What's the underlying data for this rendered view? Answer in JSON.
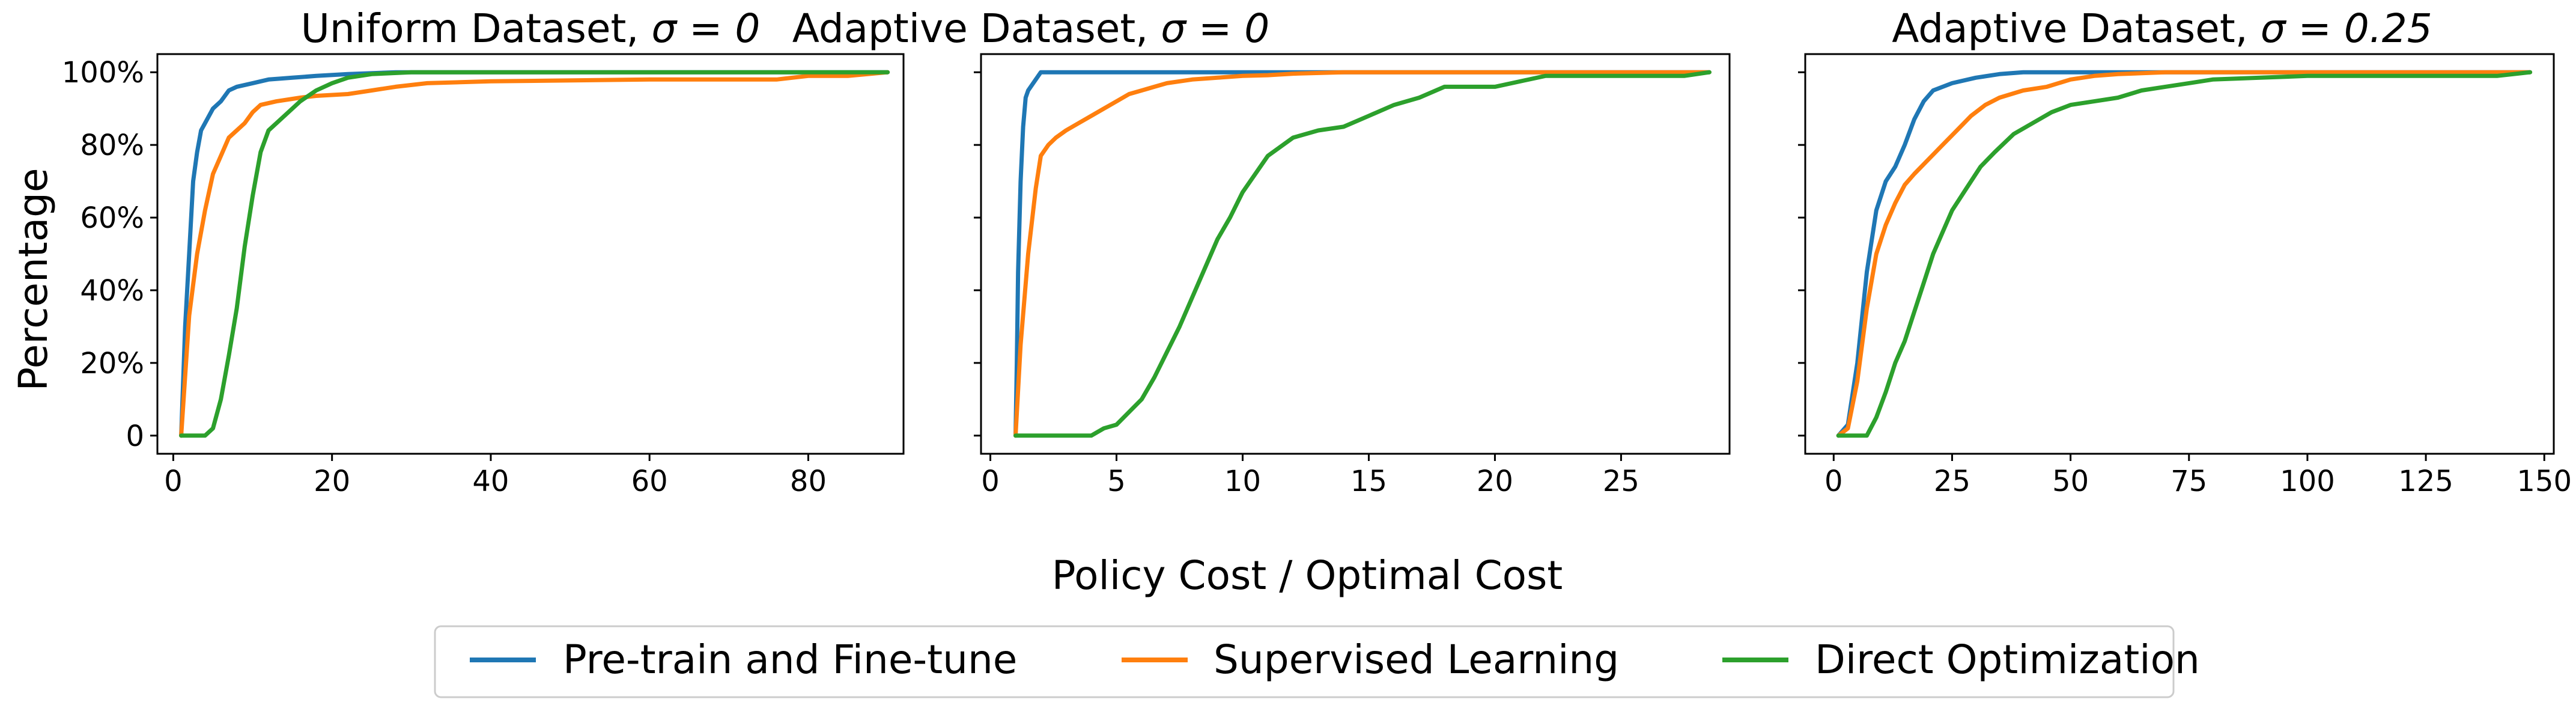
{
  "colors": {
    "pretrain": "#1f77b4",
    "supervised": "#ff7f0e",
    "direct": "#2ca02c"
  },
  "figure": {
    "ylabel": "Percentage",
    "xlabel": "Policy Cost / Optimal Cost",
    "legend": {
      "placement": "bottom-center",
      "entries": [
        "Pre-train and Fine-tune",
        "Supervised Learning",
        "Direct Optimization"
      ]
    }
  },
  "chart_data": [
    {
      "type": "line",
      "title_prefix": "Uniform Dataset, ",
      "title_math": "σ = 0",
      "xlim": [
        -2,
        92
      ],
      "ylim": [
        -5,
        105
      ],
      "xticks": [
        0,
        20,
        40,
        60,
        80
      ],
      "xtick_labels": [
        "0",
        "20",
        "40",
        "60",
        "80"
      ],
      "yticks": [
        0,
        20,
        40,
        60,
        80,
        100
      ],
      "ytick_labels": [
        "0",
        "20%",
        "40%",
        "60%",
        "80%",
        "100%"
      ],
      "grid": false,
      "series": [
        {
          "name": "Pre-train and Fine-tune",
          "color": "#1f77b4",
          "x": [
            1,
            1.5,
            2,
            2.5,
            3,
            3.5,
            4,
            4.5,
            5,
            6,
            7,
            8,
            10,
            12,
            15,
            18,
            22,
            28,
            40,
            60,
            90
          ],
          "y": [
            0,
            30,
            50,
            70,
            78,
            84,
            86,
            88,
            90,
            92,
            95,
            96,
            97,
            98,
            98.5,
            99,
            99.5,
            100,
            100,
            100,
            100
          ]
        },
        {
          "name": "Supervised Learning",
          "color": "#ff7f0e",
          "x": [
            1,
            2,
            3,
            4,
            5,
            6,
            7,
            8,
            9,
            10,
            11,
            13,
            16,
            18,
            22,
            25,
            28,
            32,
            40,
            60,
            76,
            80,
            85,
            90
          ],
          "y": [
            0,
            33,
            50,
            62,
            72,
            77,
            82,
            84,
            86,
            89,
            91,
            92,
            93,
            93.5,
            94,
            95,
            96,
            97,
            97.5,
            98,
            98,
            99,
            99,
            100
          ]
        },
        {
          "name": "Direct Optimization",
          "color": "#2ca02c",
          "x": [
            1,
            2,
            3,
            4,
            5,
            6,
            7,
            8,
            9,
            10,
            11,
            12,
            14,
            16,
            18,
            20,
            22,
            25,
            30,
            40,
            60,
            90
          ],
          "y": [
            0,
            0,
            0,
            0,
            2,
            10,
            22,
            35,
            52,
            66,
            78,
            84,
            88,
            92,
            95,
            97,
            98.5,
            99.5,
            100,
            100,
            100,
            100
          ]
        }
      ]
    },
    {
      "type": "line",
      "title_prefix": "Adaptive Dataset, ",
      "title_math": "σ = 0",
      "xlim": [
        -0.37,
        29.3
      ],
      "ylim": [
        -5,
        105
      ],
      "xticks": [
        0,
        5,
        10,
        15,
        20,
        25
      ],
      "xtick_labels": [
        "0",
        "5",
        "10",
        "15",
        "20",
        "25"
      ],
      "yticks": [
        0,
        20,
        40,
        60,
        80,
        100
      ],
      "ytick_labels": [],
      "grid": false,
      "series": [
        {
          "name": "Pre-train and Fine-tune",
          "color": "#1f77b4",
          "x": [
            1,
            1.05,
            1.1,
            1.2,
            1.3,
            1.4,
            1.5,
            1.7,
            2,
            3,
            5,
            10,
            28.5
          ],
          "y": [
            0,
            20,
            45,
            70,
            85,
            93,
            95,
            97,
            100,
            100,
            100,
            100,
            100
          ]
        },
        {
          "name": "Supervised Learning",
          "color": "#ff7f0e",
          "x": [
            1,
            1.2,
            1.5,
            1.8,
            2,
            2.3,
            2.6,
            3,
            3.5,
            4,
            4.5,
            5,
            5.5,
            6,
            6.5,
            7,
            8,
            9,
            10,
            11,
            12,
            14,
            28.5
          ],
          "y": [
            0,
            25,
            50,
            68,
            77,
            80,
            82,
            84,
            86,
            88,
            90,
            92,
            94,
            95,
            96,
            97,
            98,
            98.5,
            99,
            99.2,
            99.6,
            100,
            100
          ]
        },
        {
          "name": "Direct Optimization",
          "color": "#2ca02c",
          "x": [
            1,
            2,
            3,
            4,
            4.5,
            5,
            6,
            6.5,
            7,
            7.5,
            8,
            8.5,
            9,
            9.5,
            10,
            11,
            12,
            13,
            14,
            15,
            16,
            17,
            18,
            20,
            22,
            25,
            27.5,
            28.5
          ],
          "y": [
            0,
            0,
            0,
            0,
            2,
            3,
            10,
            16,
            23,
            30,
            38,
            46,
            54,
            60,
            67,
            77,
            82,
            84,
            85,
            88,
            91,
            93,
            96,
            96,
            99,
            99,
            99,
            100
          ]
        }
      ]
    },
    {
      "type": "line",
      "title_prefix": "Adaptive Dataset, ",
      "title_math": "σ = 0.25",
      "xlim": [
        -6,
        152
      ],
      "ylim": [
        -5,
        105
      ],
      "xticks": [
        0,
        25,
        50,
        75,
        100,
        125,
        150
      ],
      "xtick_labels": [
        "0",
        "25",
        "50",
        "75",
        "100",
        "125",
        "150"
      ],
      "yticks": [
        0,
        20,
        40,
        60,
        80,
        100
      ],
      "ytick_labels": [],
      "grid": false,
      "series": [
        {
          "name": "Pre-train and Fine-tune",
          "color": "#1f77b4",
          "x": [
            1,
            3,
            5,
            7,
            9,
            11,
            13,
            15,
            17,
            19,
            21,
            25,
            30,
            35,
            40,
            50,
            60,
            100,
            147
          ],
          "y": [
            0,
            3,
            20,
            45,
            62,
            70,
            74,
            80,
            87,
            92,
            95,
            97,
            98.5,
            99.5,
            100,
            100,
            100,
            100,
            100
          ]
        },
        {
          "name": "Supervised Learning",
          "color": "#ff7f0e",
          "x": [
            1,
            3,
            5,
            7,
            9,
            11,
            13,
            15,
            17,
            20,
            23,
            26,
            29,
            32,
            35,
            40,
            45,
            50,
            55,
            60,
            70,
            100,
            147
          ],
          "y": [
            0,
            2,
            15,
            35,
            50,
            58,
            64,
            69,
            72,
            76,
            80,
            84,
            88,
            91,
            93,
            95,
            96,
            98,
            99,
            99.5,
            100,
            100,
            100
          ]
        },
        {
          "name": "Direct Optimization",
          "color": "#2ca02c",
          "x": [
            1,
            4,
            7,
            9,
            11,
            13,
            15,
            17,
            19,
            21,
            23,
            25,
            28,
            31,
            34,
            38,
            42,
            46,
            50,
            55,
            60,
            65,
            70,
            75,
            80,
            90,
            100,
            120,
            140,
            147
          ],
          "y": [
            0,
            0,
            0,
            5,
            12,
            20,
            26,
            34,
            42,
            50,
            56,
            62,
            68,
            74,
            78,
            83,
            86,
            89,
            91,
            92,
            93,
            95,
            96,
            97,
            98,
            98.5,
            99,
            99,
            99,
            100
          ]
        }
      ]
    }
  ]
}
